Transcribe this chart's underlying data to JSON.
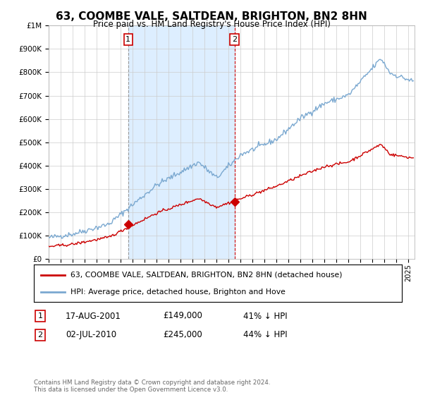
{
  "title": "63, COOMBE VALE, SALTDEAN, BRIGHTON, BN2 8HN",
  "subtitle": "Price paid vs. HM Land Registry's House Price Index (HPI)",
  "legend_label_red": "63, COOMBE VALE, SALTDEAN, BRIGHTON, BN2 8HN (detached house)",
  "legend_label_blue": "HPI: Average price, detached house, Brighton and Hove",
  "annotation1_label": "1",
  "annotation1_date": "17-AUG-2001",
  "annotation1_price": "£149,000",
  "annotation1_hpi": "41% ↓ HPI",
  "annotation2_label": "2",
  "annotation2_date": "02-JUL-2010",
  "annotation2_price": "£245,000",
  "annotation2_hpi": "44% ↓ HPI",
  "footer": "Contains HM Land Registry data © Crown copyright and database right 2024.\nThis data is licensed under the Open Government Licence v3.0.",
  "red_color": "#cc0000",
  "blue_color": "#7aa8d0",
  "shade_color": "#ddeeff",
  "background_color": "#ffffff",
  "grid_color": "#cccccc",
  "vline1_color": "#999999",
  "vline2_color": "#cc0000",
  "ylim": [
    0,
    1000000
  ],
  "yticks": [
    0,
    100000,
    200000,
    300000,
    400000,
    500000,
    600000,
    700000,
    800000,
    900000,
    1000000
  ],
  "ytick_labels": [
    "£0",
    "£100K",
    "£200K",
    "£300K",
    "£400K",
    "£500K",
    "£600K",
    "£700K",
    "£800K",
    "£900K",
    "£1M"
  ],
  "point1_x": 2001.63,
  "point1_y": 149000,
  "point2_x": 2010.5,
  "point2_y": 245000,
  "vline1_x": 2001.63,
  "vline2_x": 2010.5,
  "xmin": 1995.0,
  "xmax": 2025.5
}
